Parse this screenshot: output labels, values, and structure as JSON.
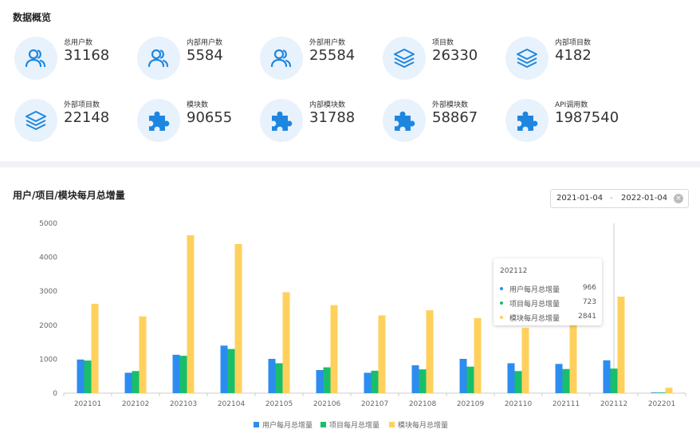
{
  "overview": {
    "title": "数据概览",
    "stats": [
      {
        "label": "总用户数",
        "value": "31168",
        "icon": "users-icon"
      },
      {
        "label": "内部用户数",
        "value": "5584",
        "icon": "users-icon"
      },
      {
        "label": "外部用户数",
        "value": "25584",
        "icon": "users-icon"
      },
      {
        "label": "项目数",
        "value": "26330",
        "icon": "layers-icon"
      },
      {
        "label": "内部项目数",
        "value": "4182",
        "icon": "layers-icon"
      },
      {
        "label": "外部项目数",
        "value": "22148",
        "icon": "layers-icon"
      },
      {
        "label": "模块数",
        "value": "90655",
        "icon": "puzzle-icon"
      },
      {
        "label": "内部模块数",
        "value": "31788",
        "icon": "puzzle-icon"
      },
      {
        "label": "外部模块数",
        "value": "58867",
        "icon": "puzzle-icon"
      },
      {
        "label": "API调用数",
        "value": "1987540",
        "icon": "puzzle-icon"
      }
    ]
  },
  "chart_section": {
    "title": "用户/项目/模块每月总增量",
    "date_start": "2021-01-04",
    "date_separator": "-",
    "date_end": "2022-01-04"
  },
  "colors": {
    "users": "#2d8cf0",
    "projects": "#19be6b",
    "modules": "#ffd15c",
    "icon": "#1f86e0"
  },
  "tooltip": {
    "title": "202112",
    "rows": [
      {
        "name": "用户每月总增量",
        "value": "966"
      },
      {
        "name": "项目每月总增量",
        "value": "723"
      },
      {
        "name": "模块每月总增量",
        "value": "2841"
      }
    ]
  },
  "chart_data": {
    "type": "bar",
    "title": "用户/项目/模块每月总增量",
    "categories": [
      "202101",
      "202102",
      "202103",
      "202104",
      "202105",
      "202106",
      "202107",
      "202108",
      "202109",
      "202110",
      "202111",
      "202112",
      "202201"
    ],
    "series": [
      {
        "name": "用户每月总增量",
        "values": [
          990,
          600,
          1130,
          1400,
          1010,
          680,
          600,
          820,
          1010,
          880,
          860,
          966,
          20
        ]
      },
      {
        "name": "项目每月总增量",
        "values": [
          960,
          650,
          1100,
          1300,
          880,
          760,
          660,
          700,
          780,
          650,
          710,
          723,
          20
        ]
      },
      {
        "name": "模块每月总增量",
        "values": [
          2630,
          2260,
          4650,
          4390,
          2970,
          2590,
          2290,
          2440,
          2210,
          1920,
          2290,
          2841,
          160
        ]
      }
    ],
    "ylim": [
      0,
      5000
    ],
    "yticks": [
      0,
      1000,
      2000,
      3000,
      4000,
      5000
    ],
    "grid": false,
    "legend": "bottom"
  }
}
